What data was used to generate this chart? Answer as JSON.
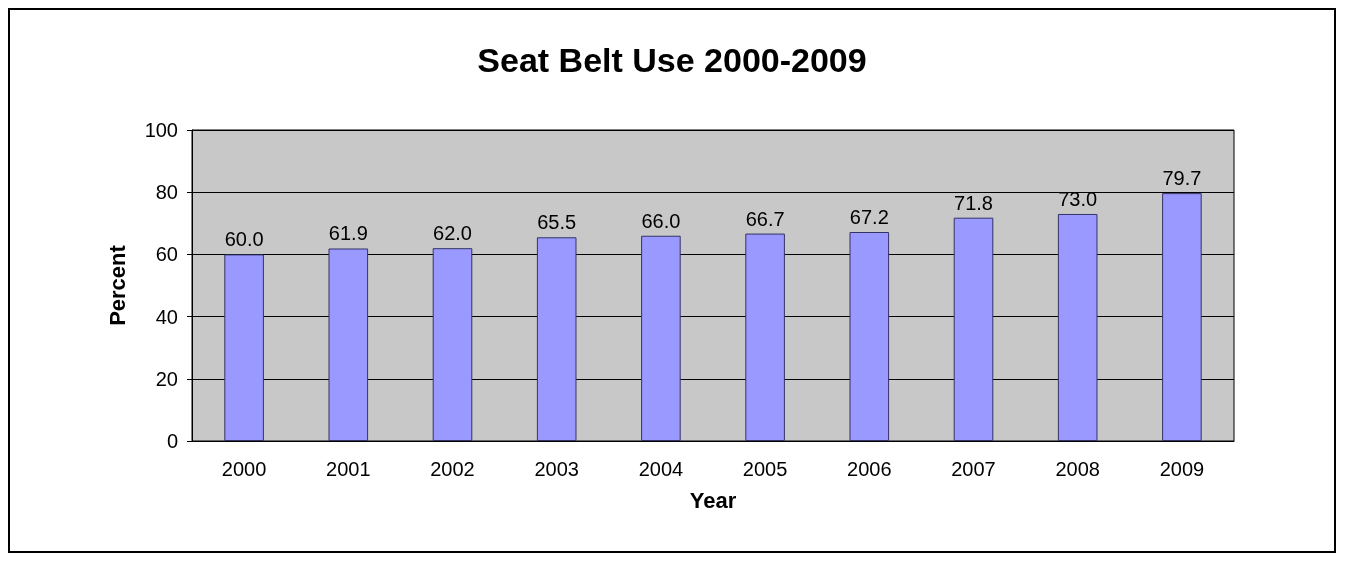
{
  "chart_data": {
    "type": "bar",
    "title": "Seat Belt Use 2000-2009",
    "xlabel": "Year",
    "ylabel": "Percent",
    "categories": [
      "2000",
      "2001",
      "2002",
      "2003",
      "2004",
      "2005",
      "2006",
      "2007",
      "2008",
      "2009"
    ],
    "values": [
      60.0,
      61.9,
      62.0,
      65.5,
      66.0,
      66.7,
      67.2,
      71.8,
      73.0,
      79.7
    ],
    "value_labels": [
      "60.0",
      "61.9",
      "62.0",
      "65.5",
      "66.0",
      "66.7",
      "67.2",
      "71.8",
      "73.0",
      "79.7"
    ],
    "color": "#9999ff",
    "ylim": [
      0,
      100
    ],
    "yticks": [
      0,
      20,
      40,
      60,
      80,
      100
    ],
    "grid": "y"
  }
}
